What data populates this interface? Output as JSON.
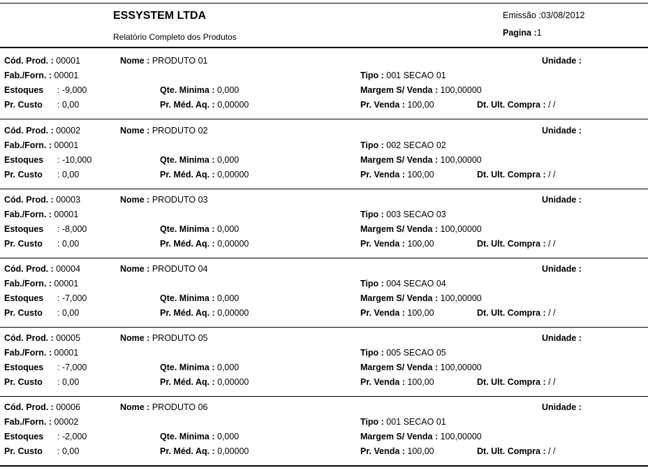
{
  "header": {
    "company": "ESSYSTEM LTDA",
    "report_title": "Relatório Completo dos Produtos",
    "emissao_label": "Emissão :",
    "emissao_value": "03/08/2012",
    "pagina_label": "Pagina  :",
    "pagina_value": "1"
  },
  "labels": {
    "cod": "Cód. Prod. :",
    "nome": "Nome :",
    "unidade": "Unidade :",
    "fab": "Fab./Forn. :",
    "tipo": "Tipo :",
    "estoques": "Estoques",
    "qte_minima": "Qte. Minima :",
    "margem": "Margem S/ Venda :",
    "pr_custo": "Pr. Custo",
    "pr_med": "Pr. Méd. Aq. :",
    "pr_venda": "Pr. Venda :",
    "dt_ult": "Dt. Ult. Compra :"
  },
  "products": [
    {
      "cod": "00001",
      "nome": "PRODUTO 01",
      "unidade": "",
      "fab": "00001",
      "tipo": "001  SECAO 01",
      "estoques": ": -9,000",
      "qte_minima": "0,000",
      "margem": "100,00000",
      "pr_custo": ": 0,00",
      "pr_med": "0,00000",
      "pr_venda": "100,00",
      "dt_ult": " /  /"
    },
    {
      "cod": "00002",
      "nome": "PRODUTO 02",
      "unidade": "",
      "fab": "00001",
      "tipo": "002  SECAO 02",
      "estoques": ": -10,000",
      "qte_minima": "0,000",
      "margem": "100,00000",
      "pr_custo": ": 0,00",
      "pr_med": "0,00000",
      "pr_venda": "100,00",
      "dt_ult": " /  /"
    },
    {
      "cod": "00003",
      "nome": "PRODUTO 03",
      "unidade": "",
      "fab": "00001",
      "tipo": "003  SECAO 03",
      "estoques": ": -8,000",
      "qte_minima": "0,000",
      "margem": "100,00000",
      "pr_custo": ": 0,00",
      "pr_med": "0,00000",
      "pr_venda": "100,00",
      "dt_ult": " /  /"
    },
    {
      "cod": "00004",
      "nome": "PRODUTO 04",
      "unidade": "",
      "fab": "00001",
      "tipo": "004  SECAO 04",
      "estoques": ": -7,000",
      "qte_minima": "0,000",
      "margem": "100,00000",
      "pr_custo": ": 0,00",
      "pr_med": "0,00000",
      "pr_venda": "100,00",
      "dt_ult": " /  /"
    },
    {
      "cod": "00005",
      "nome": "PRODUTO 05",
      "unidade": "",
      "fab": "00001",
      "tipo": "005  SECAO 05",
      "estoques": ": -7,000",
      "qte_minima": "0,000",
      "margem": "100,00000",
      "pr_custo": ": 0,00",
      "pr_med": "0,00000",
      "pr_venda": "100,00",
      "dt_ult": " /  /"
    },
    {
      "cod": "00006",
      "nome": "PRODUTO 06",
      "unidade": "",
      "fab": "00002",
      "tipo": "001  SECAO 01",
      "estoques": ": -2,000",
      "qte_minima": "0,000",
      "margem": "100,00000",
      "pr_custo": ": 0,00",
      "pr_med": "0,00000",
      "pr_venda": "100,00",
      "dt_ult": " /  /"
    }
  ]
}
